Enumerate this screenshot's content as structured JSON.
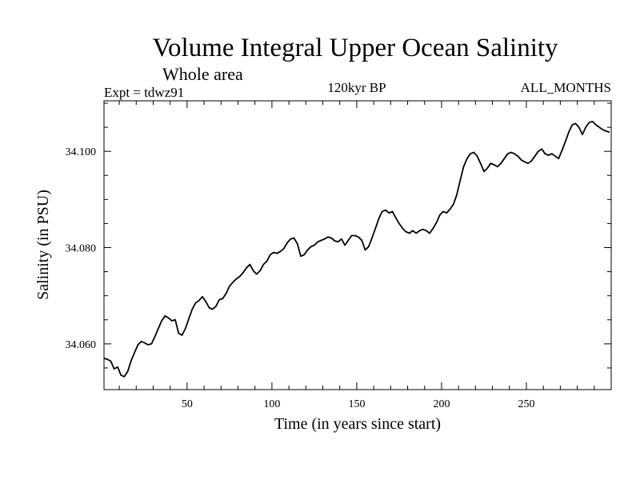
{
  "chart_data": {
    "type": "line",
    "title": "Volume Integral Upper Ocean Salinity",
    "subtitle": "Whole area",
    "experiment": "Expt = tdwz91",
    "period": "120kyr BP",
    "months": "ALL_MONTHS",
    "xlabel": "Time (in years since start)",
    "ylabel": "Salinity (in PSU)",
    "xlim": [
      1,
      300
    ],
    "ylim": [
      34.0505,
      34.1105
    ],
    "xticks": [
      50,
      100,
      150,
      200,
      250
    ],
    "xtick_labels": [
      "50",
      "100",
      "150",
      "200",
      "250"
    ],
    "yticks": [
      34.06,
      34.08,
      34.1
    ],
    "ytick_labels": [
      "34.060",
      "34.080",
      "34.100"
    ],
    "grid": false,
    "series": [
      {
        "name": "Salinity",
        "x": [
          1,
          3,
          5,
          7,
          9,
          11,
          13,
          15,
          17,
          19,
          21,
          23,
          25,
          27,
          29,
          31,
          33,
          35,
          37,
          39,
          41,
          43,
          45,
          47,
          49,
          51,
          53,
          55,
          57,
          59,
          61,
          63,
          65,
          67,
          69,
          71,
          73,
          75,
          77,
          79,
          81,
          83,
          85,
          87,
          89,
          91,
          93,
          95,
          97,
          99,
          101,
          103,
          105,
          107,
          109,
          111,
          113,
          115,
          117,
          119,
          121,
          123,
          125,
          127,
          129,
          131,
          133,
          135,
          137,
          139,
          141,
          143,
          145,
          147,
          149,
          151,
          153,
          155,
          157,
          159,
          161,
          163,
          165,
          167,
          169,
          171,
          173,
          175,
          177,
          179,
          181,
          183,
          185,
          187,
          189,
          191,
          193,
          195,
          197,
          199,
          201,
          203,
          205,
          207,
          209,
          211,
          213,
          215,
          217,
          219,
          221,
          223,
          225,
          227,
          229,
          231,
          233,
          235,
          237,
          239,
          241,
          243,
          245,
          247,
          249,
          251,
          253,
          255,
          257,
          259,
          261,
          263,
          265,
          267,
          269,
          271,
          273,
          275,
          277,
          279,
          281,
          283,
          285,
          287,
          289,
          291,
          293,
          295,
          297,
          299
        ],
        "values": [
          34.057,
          34.0568,
          34.0564,
          34.0548,
          34.0552,
          34.0535,
          34.0532,
          34.0543,
          34.0565,
          34.0582,
          34.0598,
          34.0605,
          34.0602,
          34.0598,
          34.06,
          34.0615,
          34.0632,
          34.0648,
          34.0658,
          34.0654,
          34.0648,
          34.065,
          34.0622,
          34.0618,
          34.0632,
          34.0652,
          34.0672,
          34.0685,
          34.069,
          34.0698,
          34.0688,
          34.0675,
          34.0672,
          34.0678,
          34.0692,
          34.0694,
          34.0705,
          34.072,
          34.0728,
          34.0735,
          34.074,
          34.0748,
          34.0758,
          34.0765,
          34.0752,
          34.0745,
          34.0752,
          34.0765,
          34.0772,
          34.0785,
          34.079,
          34.0788,
          34.0792,
          34.0798,
          34.081,
          34.0818,
          34.082,
          34.0808,
          34.0782,
          34.0785,
          34.0795,
          34.0802,
          34.0805,
          34.0812,
          34.0815,
          34.0818,
          34.0822,
          34.082,
          34.0814,
          34.0812,
          34.0818,
          34.0805,
          34.0815,
          34.0825,
          34.0825,
          34.0822,
          34.0815,
          34.0795,
          34.0802,
          34.082,
          34.084,
          34.086,
          34.0875,
          34.0878,
          34.0872,
          34.0875,
          34.0862,
          34.085,
          34.084,
          34.0833,
          34.083,
          34.0835,
          34.083,
          34.0835,
          34.0838,
          34.0835,
          34.083,
          34.084,
          34.0852,
          34.0868,
          34.0875,
          34.0872,
          34.088,
          34.089,
          34.091,
          34.094,
          34.0968,
          34.0985,
          34.0995,
          34.0998,
          34.099,
          34.0975,
          34.0958,
          34.0965,
          34.0975,
          34.0972,
          34.0968,
          34.0975,
          34.0985,
          34.0995,
          34.0998,
          34.0995,
          34.099,
          34.0982,
          34.0978,
          34.0975,
          34.098,
          34.099,
          34.1,
          34.1005,
          34.0995,
          34.0992,
          34.0995,
          34.099,
          34.0985,
          34.1002,
          34.102,
          34.104,
          34.1055,
          34.1058,
          34.105,
          34.1035,
          34.105,
          34.106,
          34.1062,
          34.1055,
          34.105,
          34.1045,
          34.1042,
          34.104
        ]
      }
    ]
  }
}
